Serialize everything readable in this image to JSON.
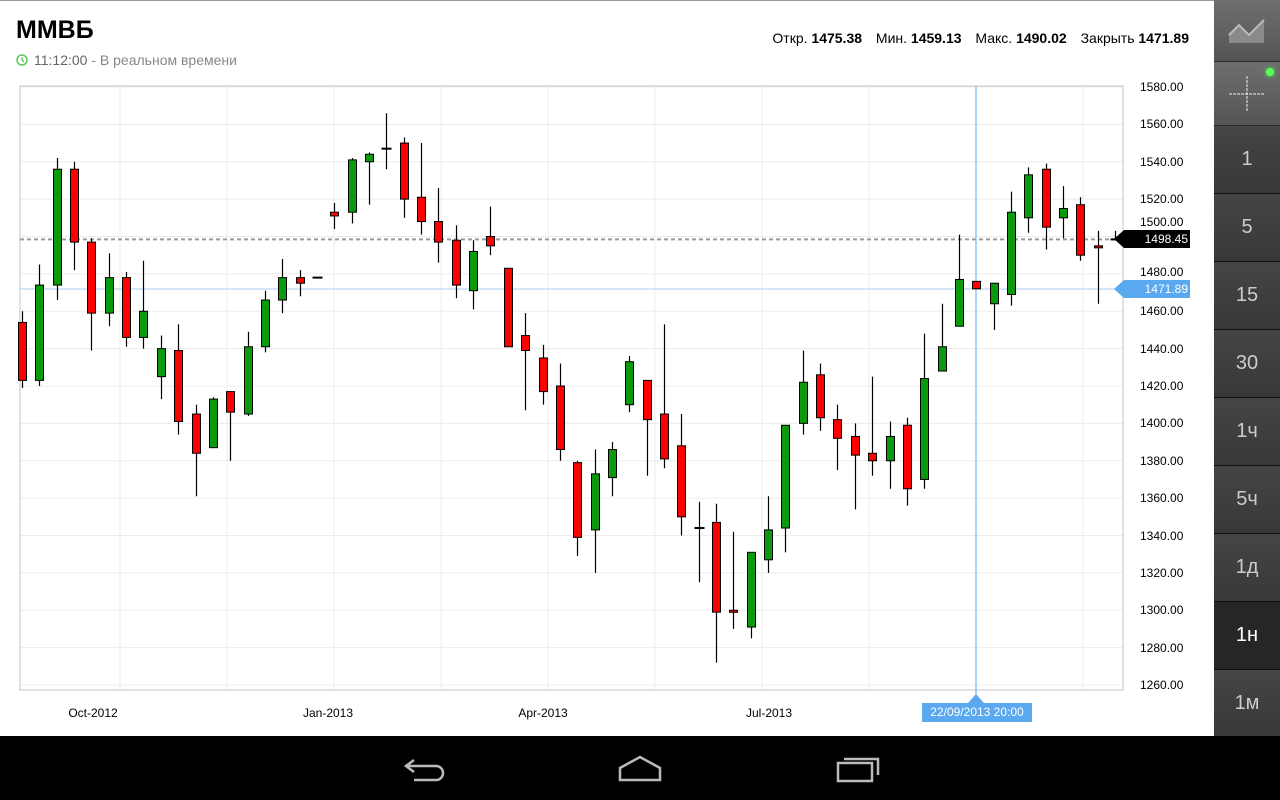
{
  "header": {
    "title": "ММВБ",
    "time": "11:12:00",
    "status": " - В реальном времени",
    "open_label": "Откр.",
    "open_value": "1475.38",
    "min_label": "Мин.",
    "min_value": "1459.13",
    "max_label": "Макс.",
    "max_value": "1490.02",
    "close_label": "Закрыть",
    "close_value": "1471.89"
  },
  "sidebar": {
    "tools": [
      {
        "icon": "area-chart-icon"
      },
      {
        "icon": "crosshair-icon",
        "active": true
      }
    ],
    "timeframes": [
      {
        "label": "1"
      },
      {
        "label": "5"
      },
      {
        "label": "15"
      },
      {
        "label": "30"
      },
      {
        "label": "1ч"
      },
      {
        "label": "5ч"
      },
      {
        "label": "1д"
      },
      {
        "label": "1н",
        "selected": true
      },
      {
        "label": "1м"
      }
    ]
  },
  "navbar": {
    "buttons": [
      "back-icon",
      "home-icon",
      "recents-icon"
    ]
  },
  "colors": {
    "up": "#0b9a0b",
    "down": "#ff0000",
    "crosshair": "#5aa9f0",
    "last_price": "#000000"
  },
  "chart_data": {
    "type": "candlestick",
    "y_ticks": [
      "1580.00",
      "1560.00",
      "1540.00",
      "1520.00",
      "1500.00",
      "1480.00",
      "1460.00",
      "1440.00",
      "1420.00",
      "1400.00",
      "1380.00",
      "1360.00",
      "1340.00",
      "1320.00",
      "1300.00",
      "1280.00",
      "1260.00"
    ],
    "ylim": [
      1260,
      1580
    ],
    "x_ticks": [
      "Oct-2012",
      "Jan-2013",
      "Apr-2013",
      "Jul-2013"
    ],
    "last_price": "1498.45",
    "crosshair_price": "1471.89",
    "crosshair_date": "22/09/2013 20:00",
    "grid": true,
    "candles_ohlc": [
      [
        1454,
        1460,
        1419,
        1423
      ],
      [
        1423,
        1485,
        1420,
        1474
      ],
      [
        1474,
        1542,
        1466,
        1536
      ],
      [
        1536,
        1540,
        1482,
        1497
      ],
      [
        1497,
        1499,
        1439,
        1459
      ],
      [
        1459,
        1491,
        1452,
        1478
      ],
      [
        1478,
        1481,
        1441,
        1446
      ],
      [
        1446,
        1487,
        1440,
        1460
      ],
      [
        1425,
        1447,
        1413,
        1440
      ],
      [
        1439,
        1453,
        1394,
        1401
      ],
      [
        1405,
        1410,
        1361,
        1384
      ],
      [
        1387,
        1414,
        1387,
        1413
      ],
      [
        1417,
        1417,
        1380,
        1406
      ],
      [
        1405,
        1449,
        1404,
        1441
      ],
      [
        1441,
        1471,
        1438,
        1466
      ],
      [
        1466,
        1488,
        1459,
        1478
      ],
      [
        1478,
        1482,
        1468,
        1475
      ],
      [
        1478,
        1478,
        1478,
        1478
      ],
      [
        1513,
        1518,
        1504,
        1511
      ],
      [
        1513,
        1542,
        1507,
        1541
      ],
      [
        1540,
        1545,
        1517,
        1544
      ],
      [
        1547,
        1566,
        1536,
        1547
      ],
      [
        1550,
        1553,
        1510,
        1520
      ],
      [
        1521,
        1550,
        1501,
        1508
      ],
      [
        1508,
        1526,
        1486,
        1497
      ],
      [
        1498,
        1506,
        1467,
        1474
      ],
      [
        1471,
        1498,
        1461,
        1492
      ],
      [
        1500,
        1516,
        1490,
        1495
      ],
      [
        1483,
        1483,
        1441,
        1441
      ],
      [
        1447,
        1459,
        1407,
        1439
      ],
      [
        1435,
        1442,
        1410,
        1417
      ],
      [
        1420,
        1432,
        1380,
        1386
      ],
      [
        1379,
        1380,
        1329,
        1339
      ],
      [
        1343,
        1386,
        1320,
        1373
      ],
      [
        1371,
        1390,
        1361,
        1386
      ],
      [
        1410,
        1436,
        1406,
        1433
      ],
      [
        1423,
        1423,
        1372,
        1402
      ],
      [
        1405,
        1453,
        1376,
        1381
      ],
      [
        1388,
        1405,
        1340,
        1350
      ],
      [
        1344,
        1358,
        1315,
        1344
      ],
      [
        1347,
        1357,
        1272,
        1299
      ],
      [
        1300,
        1342,
        1290,
        1299
      ],
      [
        1291,
        1331,
        1285,
        1331
      ],
      [
        1327,
        1361,
        1320,
        1343
      ],
      [
        1344,
        1399,
        1331,
        1399
      ],
      [
        1400,
        1439,
        1394,
        1422
      ],
      [
        1426,
        1432,
        1396,
        1403
      ],
      [
        1402,
        1410,
        1375,
        1392
      ],
      [
        1393,
        1400,
        1354,
        1383
      ],
      [
        1384,
        1425,
        1372,
        1380
      ],
      [
        1380,
        1401,
        1365,
        1393
      ],
      [
        1399,
        1403,
        1356,
        1365
      ],
      [
        1370,
        1448,
        1365,
        1424
      ],
      [
        1428,
        1464,
        1428,
        1441
      ],
      [
        1452,
        1501,
        1452,
        1477
      ],
      [
        1476,
        1476,
        1472,
        1472
      ],
      [
        1464,
        1475,
        1450,
        1475
      ],
      [
        1469,
        1524,
        1463,
        1513
      ],
      [
        1510,
        1537,
        1502,
        1533
      ],
      [
        1536,
        1539,
        1493,
        1505
      ],
      [
        1510,
        1527,
        1499,
        1515
      ],
      [
        1517,
        1521,
        1487,
        1490
      ],
      [
        1495,
        1503,
        1464,
        1494
      ],
      [
        1498.45,
        1503,
        1498,
        1498.45
      ]
    ]
  }
}
